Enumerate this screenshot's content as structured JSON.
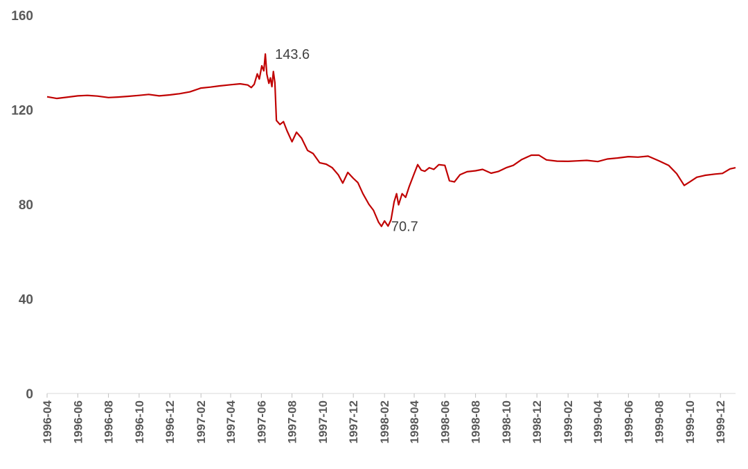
{
  "chart_data": {
    "type": "line",
    "title": "",
    "xlabel": "",
    "ylabel": "",
    "ylim": [
      0,
      160
    ],
    "yticks": [
      0,
      40,
      80,
      120,
      160
    ],
    "xlim": [
      "1996-04",
      "1999-12"
    ],
    "xticks": [
      "1996-04",
      "1996-06",
      "1996-08",
      "1996-10",
      "1996-12",
      "1997-02",
      "1997-04",
      "1997-06",
      "1997-08",
      "1997-10",
      "1997-12",
      "1998-02",
      "1998-04",
      "1998-06",
      "1998-08",
      "1998-10",
      "1998-12",
      "1999-02",
      "1999-04",
      "1999-06",
      "1999-08",
      "1999-10",
      "1999-12"
    ],
    "grid": false,
    "legend": "none",
    "line_color": "#C00000",
    "series": [
      {
        "points": [
          [
            "1996-04-01",
            125.5
          ],
          [
            "1996-04-20",
            124.8
          ],
          [
            "1996-05-10",
            125.3
          ],
          [
            "1996-06-01",
            125.9
          ],
          [
            "1996-06-20",
            126.1
          ],
          [
            "1996-07-10",
            125.8
          ],
          [
            "1996-08-01",
            125.2
          ],
          [
            "1996-08-20",
            125.4
          ],
          [
            "1996-09-10",
            125.7
          ],
          [
            "1996-10-01",
            126.1
          ],
          [
            "1996-10-20",
            126.5
          ],
          [
            "1996-11-10",
            125.9
          ],
          [
            "1996-12-01",
            126.3
          ],
          [
            "1996-12-20",
            126.8
          ],
          [
            "1997-01-10",
            127.6
          ],
          [
            "1997-02-01",
            129.2
          ],
          [
            "1997-02-20",
            129.6
          ],
          [
            "1997-03-10",
            130.1
          ],
          [
            "1997-04-01",
            130.6
          ],
          [
            "1997-04-20",
            131.0
          ],
          [
            "1997-05-05",
            130.5
          ],
          [
            "1997-05-12",
            129.4
          ],
          [
            "1997-05-18",
            130.8
          ],
          [
            "1997-05-24",
            135.2
          ],
          [
            "1997-05-28",
            133.0
          ],
          [
            "1997-06-02",
            138.6
          ],
          [
            "1997-06-06",
            136.5
          ],
          [
            "1997-06-09",
            143.6
          ],
          [
            "1997-06-12",
            135.0
          ],
          [
            "1997-06-16",
            131.2
          ],
          [
            "1997-06-19",
            133.5
          ],
          [
            "1997-06-22",
            129.8
          ],
          [
            "1997-06-25",
            136.2
          ],
          [
            "1997-06-28",
            131.5
          ],
          [
            "1997-07-01",
            115.5
          ],
          [
            "1997-07-08",
            113.8
          ],
          [
            "1997-07-15",
            115.0
          ],
          [
            "1997-07-22",
            111.2
          ],
          [
            "1997-08-01",
            106.5
          ],
          [
            "1997-08-10",
            110.5
          ],
          [
            "1997-08-20",
            108.0
          ],
          [
            "1997-09-01",
            102.8
          ],
          [
            "1997-09-12",
            101.5
          ],
          [
            "1997-09-25",
            97.6
          ],
          [
            "1997-10-08",
            97.0
          ],
          [
            "1997-10-20",
            95.5
          ],
          [
            "1997-11-01",
            92.5
          ],
          [
            "1997-11-10",
            89.0
          ],
          [
            "1997-11-20",
            93.5
          ],
          [
            "1997-12-01",
            91.0
          ],
          [
            "1997-12-10",
            89.2
          ],
          [
            "1997-12-20",
            84.5
          ],
          [
            "1998-01-01",
            80.0
          ],
          [
            "1998-01-10",
            77.5
          ],
          [
            "1998-01-20",
            72.5
          ],
          [
            "1998-01-26",
            70.7
          ],
          [
            "1998-02-01",
            73.0
          ],
          [
            "1998-02-08",
            70.8
          ],
          [
            "1998-02-14",
            73.5
          ],
          [
            "1998-02-20",
            81.0
          ],
          [
            "1998-02-25",
            84.5
          ],
          [
            "1998-03-01",
            79.8
          ],
          [
            "1998-03-08",
            84.5
          ],
          [
            "1998-03-15",
            83.0
          ],
          [
            "1998-03-22",
            87.5
          ],
          [
            "1998-04-01",
            93.0
          ],
          [
            "1998-04-08",
            96.8
          ],
          [
            "1998-04-15",
            94.5
          ],
          [
            "1998-04-22",
            94.0
          ],
          [
            "1998-05-01",
            95.5
          ],
          [
            "1998-05-10",
            94.8
          ],
          [
            "1998-05-20",
            96.8
          ],
          [
            "1998-06-01",
            96.5
          ],
          [
            "1998-06-10",
            90.0
          ],
          [
            "1998-06-20",
            89.5
          ],
          [
            "1998-07-01",
            92.5
          ],
          [
            "1998-07-15",
            93.8
          ],
          [
            "1998-08-01",
            94.2
          ],
          [
            "1998-08-15",
            94.8
          ],
          [
            "1998-09-01",
            93.2
          ],
          [
            "1998-09-15",
            93.9
          ],
          [
            "1998-10-01",
            95.5
          ],
          [
            "1998-10-15",
            96.5
          ],
          [
            "1998-11-01",
            99.0
          ],
          [
            "1998-11-20",
            100.8
          ],
          [
            "1998-12-05",
            100.8
          ],
          [
            "1998-12-20",
            98.8
          ],
          [
            "1999-01-10",
            98.3
          ],
          [
            "1999-02-01",
            98.2
          ],
          [
            "1999-02-20",
            98.4
          ],
          [
            "1999-03-10",
            98.6
          ],
          [
            "1999-04-01",
            98.1
          ],
          [
            "1999-04-20",
            99.2
          ],
          [
            "1999-05-10",
            99.6
          ],
          [
            "1999-06-01",
            100.2
          ],
          [
            "1999-06-20",
            100.0
          ],
          [
            "1999-07-10",
            100.4
          ],
          [
            "1999-08-01",
            98.4
          ],
          [
            "1999-08-20",
            96.5
          ],
          [
            "1999-09-05",
            93.0
          ],
          [
            "1999-09-20",
            88.0
          ],
          [
            "1999-10-01",
            89.5
          ],
          [
            "1999-10-15",
            91.5
          ],
          [
            "1999-11-01",
            92.3
          ],
          [
            "1999-11-20",
            92.8
          ],
          [
            "1999-12-05",
            93.1
          ],
          [
            "1999-12-20",
            95.0
          ],
          [
            "1999-12-31",
            95.5
          ]
        ]
      }
    ],
    "annotations": [
      {
        "date": "1997-06-09",
        "value": 143.6,
        "label": "143.6"
      },
      {
        "date": "1998-01-26",
        "value": 70.7,
        "label": "70.7"
      }
    ]
  }
}
